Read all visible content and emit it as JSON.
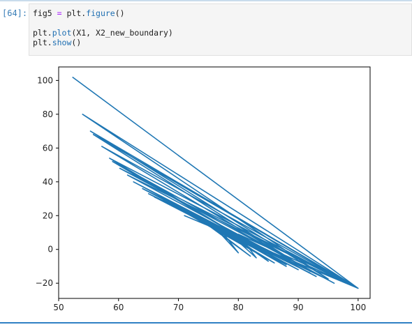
{
  "cell": {
    "prompt": "[64]:",
    "line1": {
      "a": "fig5 ",
      "op": "=",
      "b": " plt.",
      "fn": "figure",
      "c": "()"
    },
    "line3": {
      "a": "plt.",
      "fn": "plot",
      "c": "(X1, X2_new_boundary)"
    },
    "line4": {
      "a": "plt.",
      "fn": "show",
      "c": "()"
    }
  },
  "colors": {
    "line": "#1f77b4",
    "prompt": "#3a7fb8"
  },
  "chart_data": {
    "type": "line",
    "title": "",
    "xlabel": "",
    "ylabel": "",
    "xlim": [
      50,
      102
    ],
    "ylim": [
      -29,
      108
    ],
    "xticks": [
      50,
      60,
      70,
      80,
      90,
      100
    ],
    "yticks": [
      100,
      80,
      60,
      40,
      20,
      0,
      -20
    ],
    "grid": false,
    "series": [
      {
        "x": [
          52.3,
          100,
          54.0,
          95,
          55.3,
          100,
          55.8,
          92,
          57.2,
          100,
          58.5,
          88,
          59.0,
          96,
          60.2,
          100,
          61.5,
          93,
          62.5,
          90,
          64.0,
          95,
          65.0,
          88,
          66.0,
          92,
          67.5,
          85,
          69.0,
          90,
          70.5,
          86,
          72.0,
          82,
          73.5,
          88,
          75.0,
          80,
          76.5,
          85,
          78.0,
          83,
          80.0,
          100,
          71.0,
          100,
          52.3
        ],
        "y": [
          102,
          -23,
          80,
          -17.5,
          70,
          -23,
          68,
          -13,
          61,
          -23,
          54,
          -9,
          52,
          -20,
          48,
          -23,
          44,
          -16,
          40,
          -12,
          36,
          -18,
          33,
          -9,
          31,
          -14,
          29,
          -6,
          27,
          -12,
          24,
          -8,
          22,
          -4,
          19,
          -10,
          17,
          -2,
          14,
          -7,
          11,
          -5,
          9,
          -23,
          20,
          -23,
          102
        ]
      }
    ]
  }
}
